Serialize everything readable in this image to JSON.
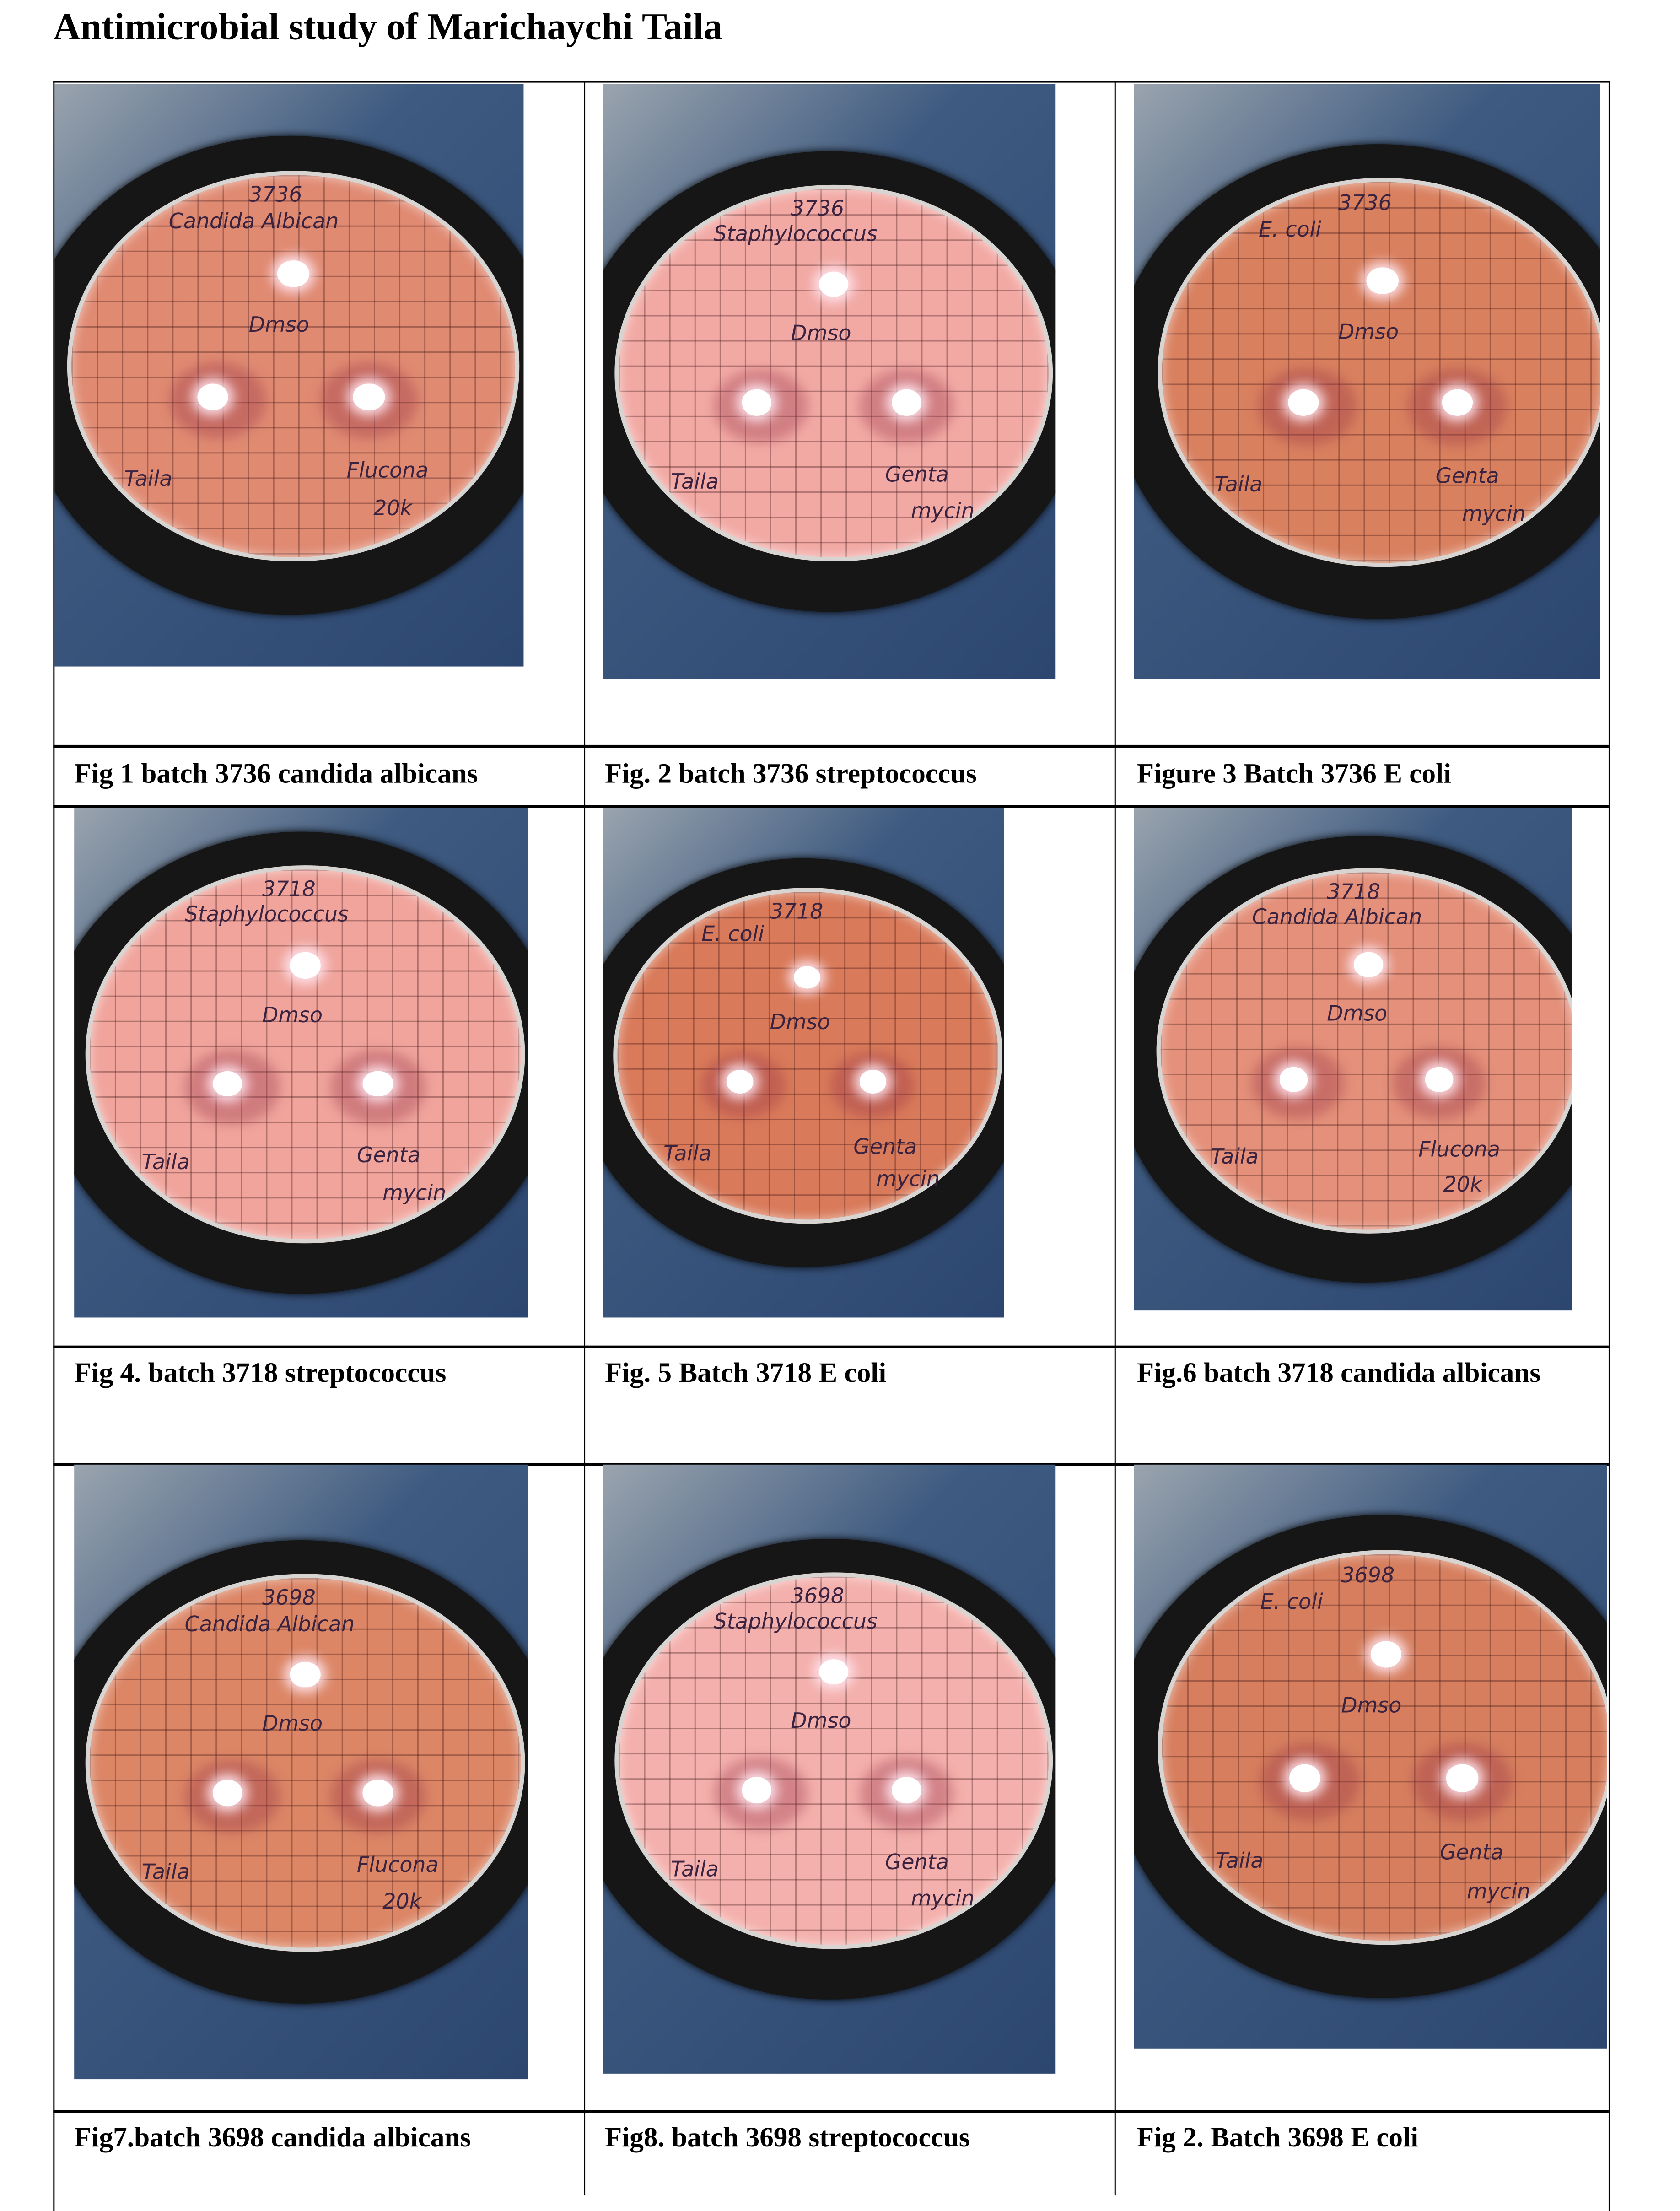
{
  "title": "Antimicrobial study of Marichaychi Taila",
  "figures": [
    {
      "caption": "Fig 1 batch 3736 candida albicans",
      "plate": {
        "number": "3736",
        "organism": "Candida Albican",
        "control": "Dmso",
        "sample": "Taila",
        "drug": "Flucona",
        "drug2": "20k",
        "agar": "#e08a72"
      }
    },
    {
      "caption": "Fig. 2 batch 3736 streptococcus",
      "plate": {
        "number": "3736",
        "organism": "Staphylococcus",
        "control": "Dmso",
        "sample": "Taila",
        "drug": "Genta",
        "drug2": "mycin",
        "agar": "#f2a9a4"
      }
    },
    {
      "caption": "Figure 3 Batch  3736 E coli",
      "plate": {
        "number": "3736",
        "organism": "E. coli",
        "control": "Dmso",
        "sample": "Taila",
        "drug": "Genta",
        "drug2": "mycin",
        "agar": "#d9805f"
      }
    },
    {
      "caption": "Fig 4. batch 3718 streptococcus",
      "plate": {
        "number": "3718",
        "organism": "Staphylococcus",
        "control": "Dmso",
        "sample": "Taila",
        "drug": "Genta",
        "drug2": "mycin",
        "agar": "#f0a49c"
      }
    },
    {
      "caption": "Fig. 5 Batch  3718 E coli",
      "plate": {
        "number": "3718",
        "organism": "E. coli",
        "control": "Dmso",
        "sample": "Taila",
        "drug": "Genta",
        "drug2": "mycin",
        "agar": "#d97a5a"
      }
    },
    {
      "caption": "Fig.6    batch    3718    candida albicans",
      "plate": {
        "number": "3718",
        "organism": "Candida Albican",
        "control": "Dmso",
        "sample": "Taila",
        "drug": "Flucona",
        "drug2": "20k",
        "agar": "#e4907a"
      }
    },
    {
      "caption": "Fig7.batch 3698 candida albicans",
      "plate": {
        "number": "3698",
        "organism": "Candida Albican",
        "control": "Dmso",
        "sample": "Taila",
        "drug": "Flucona",
        "drug2": "20k",
        "agar": "#dc8666"
      }
    },
    {
      "caption": "Fig8.  batch 3698 streptococcus",
      "plate": {
        "number": "3698",
        "organism": "Staphylococcus",
        "control": "Dmso",
        "sample": "Taila",
        "drug": "Genta",
        "drug2": "mycin",
        "agar": "#f4b0ac"
      }
    },
    {
      "caption": "Fig 2.  Batch  3698 E coli",
      "plate": {
        "number": "3698",
        "organism": "E. coli",
        "control": "Dmso",
        "sample": "Taila",
        "drug": "Genta",
        "drug2": "mycin",
        "agar": "#d67e5e"
      }
    }
  ]
}
